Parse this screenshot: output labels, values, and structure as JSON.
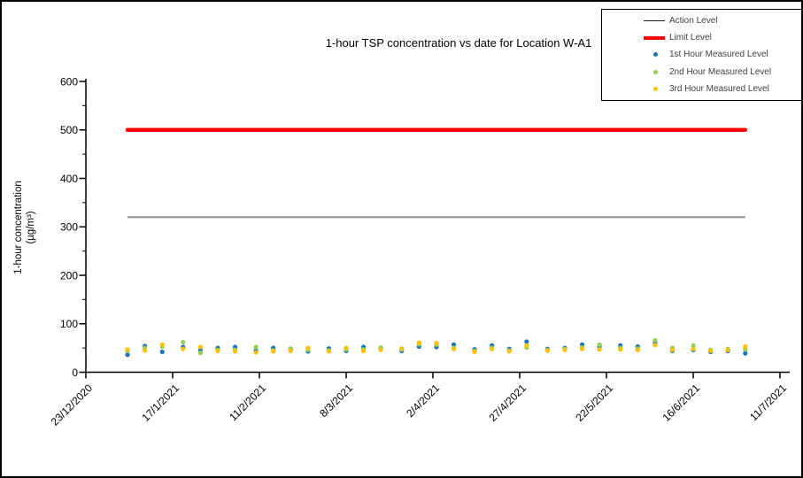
{
  "chart_data": {
    "type": "scatter",
    "title": "1-hour TSP concentration vs date for Location W-A1",
    "ylabel_line1": "1-hour concentration",
    "ylabel_line2": "(µg/m³)",
    "x_axis": {
      "tick_labels": [
        "23/12/2020",
        "17/1/2021",
        "11/2/2021",
        "8/3/2021",
        "2/4/2021",
        "27/4/2021",
        "22/5/2021",
        "16/6/2021",
        "11/7/2021"
      ],
      "tick_interval_days": 25
    },
    "y_axis": {
      "min": 0,
      "max": 600,
      "major_tick": 100,
      "minor_tick": 50,
      "tick_labels": [
        "0",
        "100",
        "200",
        "300",
        "400",
        "500",
        "600"
      ]
    },
    "reference_lines": [
      {
        "name": "Action Level",
        "value": 320,
        "color": "#8C8C8C",
        "thickness": 2
      },
      {
        "name": "Limit Level",
        "value": 500,
        "color": "#FF0000",
        "thickness": 4.5
      }
    ],
    "series": [
      {
        "name": "1st Hour Measured Level",
        "key": "h1",
        "color": "#1F71BC"
      },
      {
        "name": "2nd Hour Measured Level",
        "key": "h2",
        "color": "#92D050"
      },
      {
        "name": "3rd Hour Measured Level",
        "key": "h3",
        "color": "#FFC000"
      }
    ],
    "measurements": [
      {
        "date": "4/1/2021",
        "h1": 36,
        "h2": 44,
        "h3": 47
      },
      {
        "date": "9/1/2021",
        "h1": 54,
        "h2": 50,
        "h3": 45
      },
      {
        "date": "14/1/2021",
        "h1": 42,
        "h2": 53,
        "h3": 57
      },
      {
        "date": "20/1/2021",
        "h1": 52,
        "h2": 62,
        "h3": 48
      },
      {
        "date": "25/1/2021",
        "h1": 46,
        "h2": 40,
        "h3": 52
      },
      {
        "date": "30/1/2021",
        "h1": 50,
        "h2": 46,
        "h3": 44
      },
      {
        "date": "4/2/2021",
        "h1": 52,
        "h2": 46,
        "h3": 43
      },
      {
        "date": "10/2/2021",
        "h1": 44,
        "h2": 52,
        "h3": 41
      },
      {
        "date": "15/2/2021",
        "h1": 50,
        "h2": 45,
        "h3": 43
      },
      {
        "date": "20/2/2021",
        "h1": 46,
        "h2": 49,
        "h3": 44
      },
      {
        "date": "25/2/2021",
        "h1": 43,
        "h2": 46,
        "h3": 50
      },
      {
        "date": "3/3/2021",
        "h1": 49,
        "h2": 45,
        "h3": 43
      },
      {
        "date": "8/3/2021",
        "h1": 44,
        "h2": 47,
        "h3": 50
      },
      {
        "date": "13/3/2021",
        "h1": 52,
        "h2": 47,
        "h3": 44
      },
      {
        "date": "18/3/2021",
        "h1": 49,
        "h2": 51,
        "h3": 46
      },
      {
        "date": "24/3/2021",
        "h1": 44,
        "h2": 47,
        "h3": 49
      },
      {
        "date": "29/3/2021",
        "h1": 53,
        "h2": 58,
        "h3": 61
      },
      {
        "date": "3/4/2021",
        "h1": 52,
        "h2": 57,
        "h3": 60
      },
      {
        "date": "8/4/2021",
        "h1": 57,
        "h2": 50,
        "h3": 48
      },
      {
        "date": "14/4/2021",
        "h1": 47,
        "h2": 44,
        "h3": 42
      },
      {
        "date": "19/4/2021",
        "h1": 55,
        "h2": 50,
        "h3": 48
      },
      {
        "date": "24/4/2021",
        "h1": 48,
        "h2": 45,
        "h3": 43
      },
      {
        "date": "29/4/2021",
        "h1": 63,
        "h2": 51,
        "h3": 55
      },
      {
        "date": "5/5/2021",
        "h1": 48,
        "h2": 46,
        "h3": 45
      },
      {
        "date": "10/5/2021",
        "h1": 50,
        "h2": 48,
        "h3": 46
      },
      {
        "date": "15/5/2021",
        "h1": 57,
        "h2": 51,
        "h3": 48
      },
      {
        "date": "20/5/2021",
        "h1": 53,
        "h2": 57,
        "h3": 47
      },
      {
        "date": "26/5/2021",
        "h1": 55,
        "h2": 50,
        "h3": 47
      },
      {
        "date": "31/5/2021",
        "h1": 53,
        "h2": 49,
        "h3": 46
      },
      {
        "date": "5/6/2021",
        "h1": 61,
        "h2": 66,
        "h3": 56
      },
      {
        "date": "10/6/2021",
        "h1": 44,
        "h2": 50,
        "h3": 46
      },
      {
        "date": "16/6/2021",
        "h1": 46,
        "h2": 55,
        "h3": 48
      },
      {
        "date": "21/6/2021",
        "h1": 42,
        "h2": 46,
        "h3": 44
      },
      {
        "date": "26/6/2021",
        "h1": 44,
        "h2": 48,
        "h3": 46
      },
      {
        "date": "1/7/2021",
        "h1": 39,
        "h2": 47,
        "h3": 53
      }
    ]
  },
  "legend": {
    "items": [
      {
        "label": "Action Level",
        "swatch": "line",
        "color": "#1A1A1A",
        "thick": 1.5
      },
      {
        "label": "Limit Level",
        "swatch": "line",
        "color": "#FF0000",
        "thick": 4
      },
      {
        "label": "1st Hour Measured Level",
        "swatch": "dot",
        "color": "#1F71BC"
      },
      {
        "label": "2nd Hour Measured Level",
        "swatch": "dot",
        "color": "#92D050"
      },
      {
        "label": "3rd Hour Measured Level",
        "swatch": "dot",
        "color": "#FFC000"
      }
    ]
  }
}
